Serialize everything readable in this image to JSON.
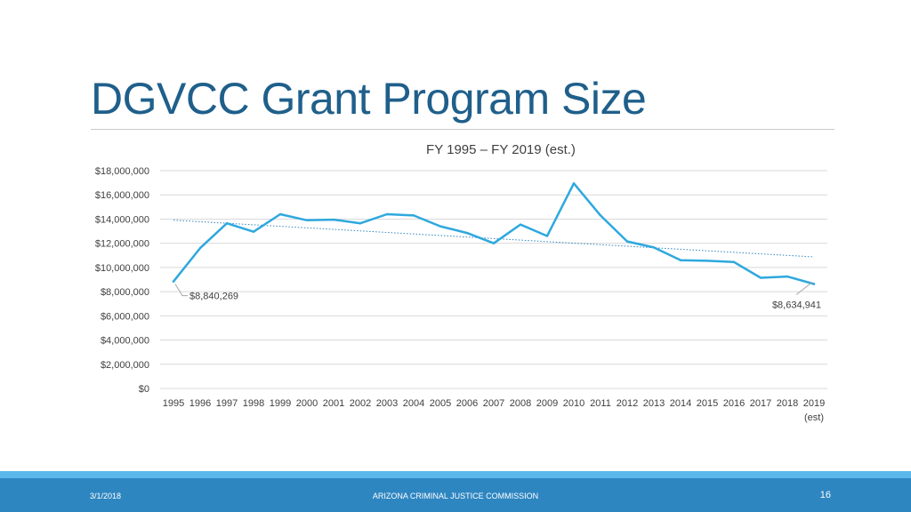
{
  "slide": {
    "title": "DGVCC Grant Program Size"
  },
  "footer": {
    "date": "3/1/2018",
    "org": "ARIZONA CRIMINAL JUSTICE COMMISSION",
    "page": "16"
  },
  "chart_data": {
    "type": "line",
    "title": "FY 1995 – FY 2019 (est.)",
    "xlabel": "",
    "ylabel": "",
    "categories": [
      "1995",
      "1996",
      "1997",
      "1998",
      "1999",
      "2000",
      "2001",
      "2002",
      "2003",
      "2004",
      "2005",
      "2006",
      "2007",
      "2008",
      "2009",
      "2010",
      "2011",
      "2012",
      "2013",
      "2014",
      "2015",
      "2016",
      "2017",
      "2018",
      "2019"
    ],
    "category_sublabels": {
      "2019": "(est)"
    },
    "series": [
      {
        "values": [
          8840269,
          11600000,
          13650000,
          12950000,
          14400000,
          13900000,
          13950000,
          13650000,
          14400000,
          14300000,
          13400000,
          12850000,
          12000000,
          13550000,
          12600000,
          16950000,
          14300000,
          12150000,
          11650000,
          10600000,
          10550000,
          10450000,
          9150000,
          9250000,
          8634941
        ],
        "color": "#2ea8de"
      }
    ],
    "trendline": {
      "type": "linear",
      "style": "dotted",
      "color": "#2e86c1"
    },
    "data_labels": [
      {
        "index": 0,
        "text": "$8,840,269"
      },
      {
        "index": 24,
        "text": "$8,634,941"
      }
    ],
    "ylim": [
      0,
      18000000
    ],
    "yticks": [
      0,
      2000000,
      4000000,
      6000000,
      8000000,
      10000000,
      12000000,
      14000000,
      16000000,
      18000000
    ],
    "ytick_labels": [
      "$0",
      "$2,000,000",
      "$4,000,000",
      "$6,000,000",
      "$8,000,000",
      "$10,000,000",
      "$12,000,000",
      "$14,000,000",
      "$16,000,000",
      "$18,000,000"
    ],
    "grid": true,
    "legend": "none"
  }
}
